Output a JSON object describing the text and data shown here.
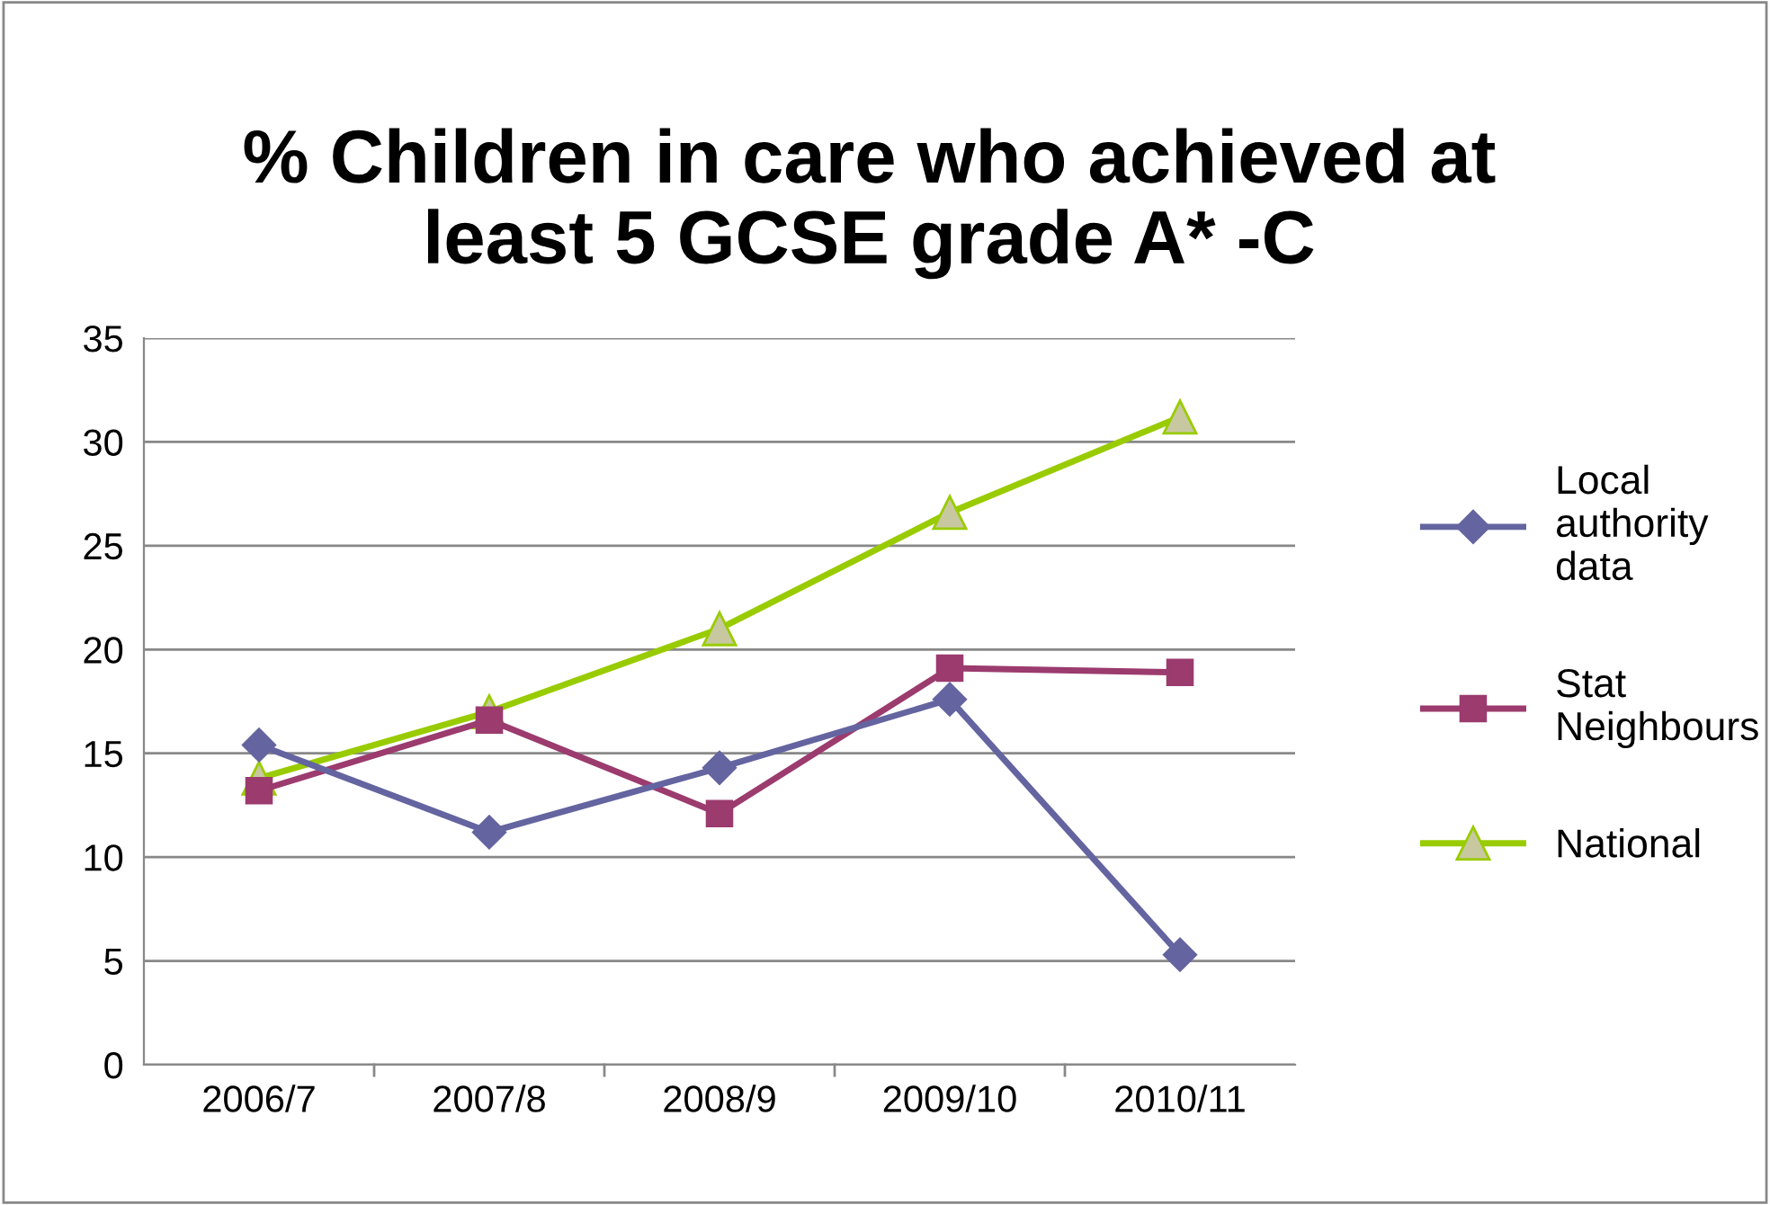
{
  "chart_data": {
    "type": "line",
    "title": "% Children in care who achieved at\nleast 5 GCSE grade A* -C",
    "categories": [
      "2006/7",
      "2007/8",
      "2008/9",
      "2009/10",
      "2010/11"
    ],
    "series": [
      {
        "name": "Local\nauthority\ndata",
        "color": "#6464a0",
        "marker": "diamond",
        "values": [
          15.4,
          11.2,
          14.3,
          17.6,
          5.3
        ]
      },
      {
        "name": "Stat\nNeighbours",
        "color": "#9b3b6e",
        "marker": "square",
        "values": [
          13.2,
          16.6,
          12.1,
          19.1,
          18.9
        ]
      },
      {
        "name": "National",
        "color": "#99cc00",
        "marker": "triangle",
        "values": [
          13.8,
          17.0,
          21.0,
          26.6,
          31.2
        ]
      }
    ],
    "ylim": [
      0,
      35
    ],
    "yticks": [
      0,
      5,
      10,
      15,
      20,
      25,
      30,
      35
    ],
    "grid": "y",
    "legend": "right",
    "line_style": "solid"
  }
}
